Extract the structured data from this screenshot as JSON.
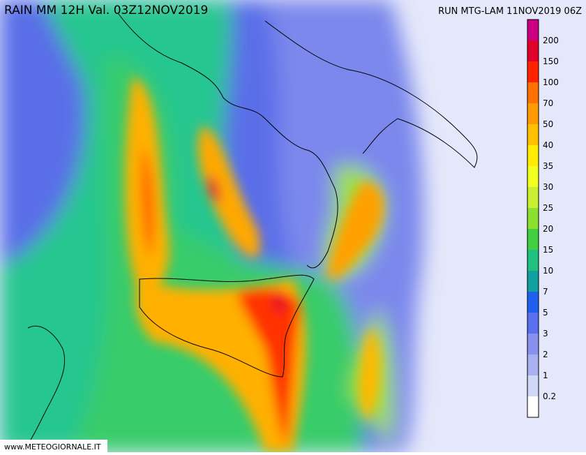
{
  "header": {
    "title": "RAIN  MM  12H  Val.  03Z12NOV2019",
    "run": "RUN  MTG-LAM  11NOV2019  06Z"
  },
  "legend": {
    "labels": [
      "200",
      "150",
      "100",
      "70",
      "50",
      "40",
      "35",
      "30",
      "25",
      "20",
      "15",
      "10",
      "7",
      "5",
      "3",
      "2",
      "1",
      "0.2"
    ],
    "colors": [
      "#cc0080",
      "#e0002a",
      "#ff2000",
      "#ff7000",
      "#ff9a00",
      "#ffc000",
      "#ffec00",
      "#f0ff20",
      "#c8f030",
      "#8ce030",
      "#40d040",
      "#20c080",
      "#10a0a0",
      "#2060f0",
      "#5a70f0",
      "#8890f0",
      "#a8b0f0",
      "#d0d8f8",
      "#ffffff"
    ]
  },
  "footer": {
    "credit": "www.METEOGIORNALE.IT"
  }
}
